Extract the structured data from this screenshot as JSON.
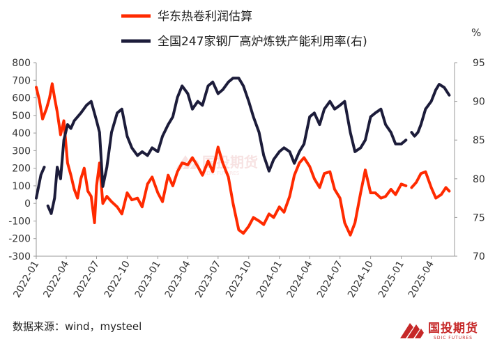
{
  "chart_data": {
    "type": "line",
    "series": [
      {
        "name": "华东热卷利润估算",
        "axis": "left",
        "color": "#ff2a00",
        "points": [
          [
            "2022-01-01",
            660
          ],
          [
            "2022-01-10",
            590
          ],
          [
            "2022-01-20",
            480
          ],
          [
            "2022-02-01",
            540
          ],
          [
            "2022-02-10",
            600
          ],
          [
            "2022-02-18",
            680
          ],
          [
            "2022-02-25",
            600
          ],
          [
            "2022-03-05",
            520
          ],
          [
            "2022-03-15",
            390
          ],
          [
            "2022-03-25",
            470
          ],
          [
            "2022-04-05",
            230
          ],
          [
            "2022-04-15",
            160
          ],
          [
            "2022-04-25",
            80
          ],
          [
            "2022-05-05",
            30
          ],
          [
            "2022-05-15",
            140
          ],
          [
            "2022-05-25",
            200
          ],
          [
            "2022-06-05",
            70
          ],
          [
            "2022-06-15",
            40
          ],
          [
            "2022-06-25",
            -110
          ],
          [
            "2022-07-01",
            100
          ],
          [
            "2022-07-10",
            230
          ],
          [
            "2022-07-20",
            0
          ],
          [
            "2022-08-01",
            40
          ],
          [
            "2022-08-15",
            10
          ],
          [
            "2022-09-01",
            -20
          ],
          [
            "2022-09-15",
            -60
          ],
          [
            "2022-10-01",
            60
          ],
          [
            "2022-10-15",
            20
          ],
          [
            "2022-11-01",
            30
          ],
          [
            "2022-11-15",
            -20
          ],
          [
            "2022-12-01",
            110
          ],
          [
            "2022-12-15",
            150
          ],
          [
            "2023-01-01",
            60
          ],
          [
            "2023-01-15",
            10
          ],
          [
            "2023-02-01",
            160
          ],
          [
            "2023-02-15",
            100
          ],
          [
            "2023-03-01",
            180
          ],
          [
            "2023-03-15",
            230
          ],
          [
            "2023-04-01",
            220
          ],
          [
            "2023-04-15",
            260
          ],
          [
            "2023-05-01",
            210
          ],
          [
            "2023-05-15",
            160
          ],
          [
            "2023-06-01",
            240
          ],
          [
            "2023-06-15",
            180
          ],
          [
            "2023-07-01",
            320
          ],
          [
            "2023-07-15",
            230
          ],
          [
            "2023-08-01",
            150
          ],
          [
            "2023-08-15",
            0
          ],
          [
            "2023-09-01",
            -150
          ],
          [
            "2023-09-15",
            -170
          ],
          [
            "2023-10-01",
            -130
          ],
          [
            "2023-10-15",
            -80
          ],
          [
            "2023-11-01",
            -100
          ],
          [
            "2023-11-15",
            -120
          ],
          [
            "2023-12-01",
            -60
          ],
          [
            "2023-12-15",
            -80
          ],
          [
            "2024-01-01",
            -20
          ],
          [
            "2024-01-15",
            -50
          ],
          [
            "2024-02-01",
            40
          ],
          [
            "2024-02-15",
            160
          ],
          [
            "2024-03-01",
            230
          ],
          [
            "2024-03-15",
            260
          ],
          [
            "2024-04-01",
            210
          ],
          [
            "2024-04-15",
            140
          ],
          [
            "2024-05-01",
            90
          ],
          [
            "2024-05-15",
            170
          ],
          [
            "2024-06-01",
            180
          ],
          [
            "2024-06-15",
            80
          ],
          [
            "2024-07-01",
            30
          ],
          [
            "2024-07-15",
            -110
          ],
          [
            "2024-08-01",
            -180
          ],
          [
            "2024-08-15",
            -110
          ],
          [
            "2024-09-01",
            60
          ],
          [
            "2024-09-15",
            190
          ],
          [
            "2024-10-01",
            60
          ],
          [
            "2024-10-15",
            60
          ],
          [
            "2024-11-01",
            30
          ],
          [
            "2024-11-15",
            40
          ],
          [
            "2024-12-01",
            80
          ],
          [
            "2024-12-15",
            50
          ],
          [
            "2025-01-01",
            110
          ],
          [
            "2025-01-15",
            100
          ]
        ],
        "points_b": [
          [
            "2025-02-01",
            90
          ],
          [
            "2025-02-15",
            120
          ],
          [
            "2025-03-01",
            170
          ],
          [
            "2025-03-15",
            180
          ],
          [
            "2025-04-01",
            90
          ],
          [
            "2025-04-15",
            30
          ],
          [
            "2025-05-01",
            50
          ],
          [
            "2025-05-15",
            90
          ],
          [
            "2025-05-25",
            70
          ]
        ]
      },
      {
        "name": "全国247家钢厂高炉炼铁产能利用率(右)",
        "axis": "right",
        "color": "#1c1c3a",
        "points": [
          [
            "2022-01-01",
            77.5
          ],
          [
            "2022-01-15",
            80.5
          ],
          [
            "2022-01-25",
            81.5
          ]
        ],
        "points_b": [
          [
            "2022-02-05",
            76.5
          ],
          [
            "2022-02-15",
            75.5
          ],
          [
            "2022-02-25",
            77.5
          ],
          [
            "2022-03-05",
            81.5
          ],
          [
            "2022-03-15",
            80
          ],
          [
            "2022-03-25",
            85
          ],
          [
            "2022-04-05",
            87
          ],
          [
            "2022-04-15",
            86.5
          ],
          [
            "2022-04-25",
            87.5
          ],
          [
            "2022-05-15",
            88.5
          ],
          [
            "2022-06-01",
            89.5
          ],
          [
            "2022-06-15",
            90
          ],
          [
            "2022-07-01",
            87.5
          ],
          [
            "2022-07-10",
            86
          ],
          [
            "2022-07-20",
            79
          ],
          [
            "2022-08-01",
            81.5
          ],
          [
            "2022-08-15",
            86
          ],
          [
            "2022-09-01",
            88.5
          ],
          [
            "2022-09-15",
            89
          ],
          [
            "2022-10-01",
            85.5
          ],
          [
            "2022-10-15",
            84
          ],
          [
            "2022-11-01",
            83
          ],
          [
            "2022-11-15",
            83.5
          ],
          [
            "2022-12-01",
            83
          ],
          [
            "2022-12-15",
            84
          ],
          [
            "2023-01-01",
            83.5
          ],
          [
            "2023-01-15",
            85.5
          ],
          [
            "2023-02-01",
            87
          ],
          [
            "2023-02-15",
            88
          ],
          [
            "2023-03-01",
            90.5
          ],
          [
            "2023-03-15",
            92
          ],
          [
            "2023-04-01",
            91
          ],
          [
            "2023-04-15",
            89
          ],
          [
            "2023-05-01",
            90
          ],
          [
            "2023-05-15",
            89.5
          ],
          [
            "2023-06-01",
            92
          ],
          [
            "2023-06-15",
            92.5
          ],
          [
            "2023-07-01",
            91
          ],
          [
            "2023-07-15",
            91.5
          ],
          [
            "2023-08-01",
            92.5
          ],
          [
            "2023-08-15",
            93
          ],
          [
            "2023-09-01",
            93
          ],
          [
            "2023-09-15",
            92
          ],
          [
            "2023-10-01",
            90
          ],
          [
            "2023-10-15",
            88
          ],
          [
            "2023-11-01",
            86
          ],
          [
            "2023-11-15",
            83
          ],
          [
            "2023-12-01",
            81
          ],
          [
            "2023-12-15",
            82.5
          ],
          [
            "2024-01-01",
            83.5
          ],
          [
            "2024-01-15",
            84
          ],
          [
            "2024-02-01",
            83.5
          ],
          [
            "2024-02-15",
            82
          ],
          [
            "2024-03-01",
            83.5
          ],
          [
            "2024-03-15",
            84.5
          ],
          [
            "2024-04-01",
            88
          ],
          [
            "2024-04-15",
            88.5
          ],
          [
            "2024-05-01",
            87
          ],
          [
            "2024-05-15",
            89
          ],
          [
            "2024-06-01",
            90
          ],
          [
            "2024-06-15",
            89
          ],
          [
            "2024-07-01",
            89.5
          ],
          [
            "2024-07-15",
            90
          ],
          [
            "2024-08-01",
            86
          ],
          [
            "2024-08-15",
            83.5
          ],
          [
            "2024-09-01",
            84
          ],
          [
            "2024-09-15",
            85
          ],
          [
            "2024-10-01",
            88
          ],
          [
            "2024-10-15",
            88.5
          ],
          [
            "2024-11-01",
            89
          ],
          [
            "2024-11-15",
            87
          ],
          [
            "2024-12-01",
            86
          ],
          [
            "2024-12-15",
            84.5
          ],
          [
            "2025-01-01",
            84.5
          ],
          [
            "2025-01-15",
            85
          ]
        ],
        "points_c": [
          [
            "2025-02-01",
            86
          ],
          [
            "2025-02-10",
            85.5
          ],
          [
            "2025-02-20",
            86
          ],
          [
            "2025-03-01",
            87
          ],
          [
            "2025-03-15",
            89
          ],
          [
            "2025-04-01",
            90
          ],
          [
            "2025-04-15",
            91.5
          ],
          [
            "2025-04-25",
            92.2
          ],
          [
            "2025-05-10",
            91.8
          ],
          [
            "2025-05-25",
            90.8
          ]
        ]
      }
    ],
    "left_axis": {
      "min": -300,
      "max": 800,
      "ticks": [
        -300,
        -200,
        -100,
        0,
        100,
        200,
        300,
        400,
        500,
        600,
        700,
        800
      ]
    },
    "right_axis": {
      "min": 70,
      "max": 95,
      "ticks": [
        70,
        75,
        80,
        85,
        90,
        95
      ],
      "unit": "%"
    },
    "x_axis": {
      "min": "2022-01-01",
      "max": "2025-06-10",
      "ticks": [
        "2022-01",
        "2022-04",
        "2022-07",
        "2022-10",
        "2023-01",
        "2023-04",
        "2023-07",
        "2023-10",
        "2024-01",
        "2024-04",
        "2024-07",
        "2024-10",
        "2025-01",
        "2025-04"
      ]
    },
    "legend_position": "top-left",
    "grid": false
  },
  "source_text": "数据来源：wind，mysteel",
  "logo": {
    "brand": "国投期货",
    "sub": "SDIC FUTURES"
  },
  "watermark": {
    "brand": "国投期货",
    "sub": "SDIC FUTURES"
  }
}
